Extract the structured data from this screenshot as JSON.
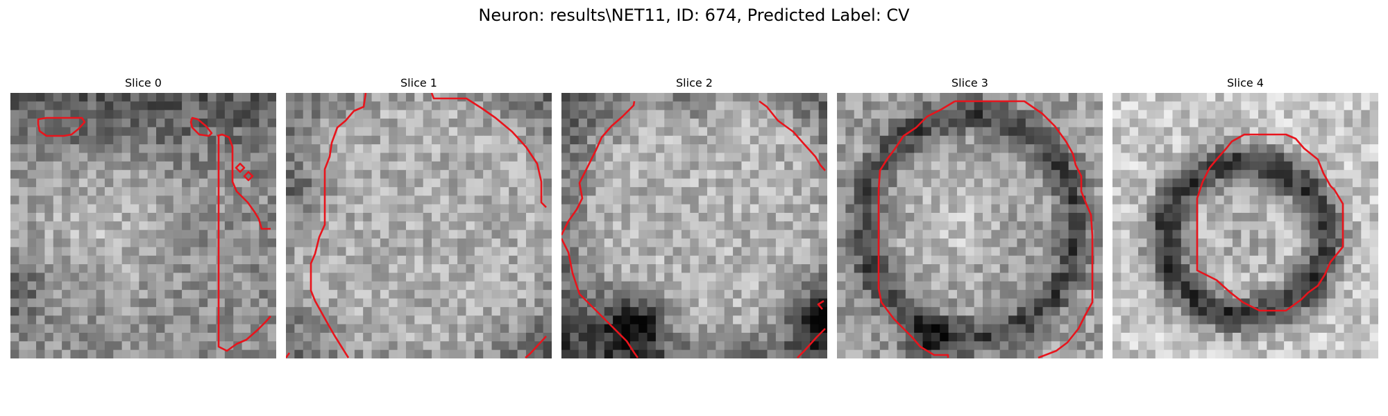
{
  "figure": {
    "title": "Neuron: results\\NET11, ID: 674, Predicted Label: CV"
  },
  "slices": [
    {
      "title": "Slice 0"
    },
    {
      "title": "Slice 1"
    },
    {
      "title": "Slice 2"
    },
    {
      "title": "Slice 3"
    },
    {
      "title": "Slice 4"
    }
  ],
  "colors": {
    "contour": "#e8141c"
  }
}
